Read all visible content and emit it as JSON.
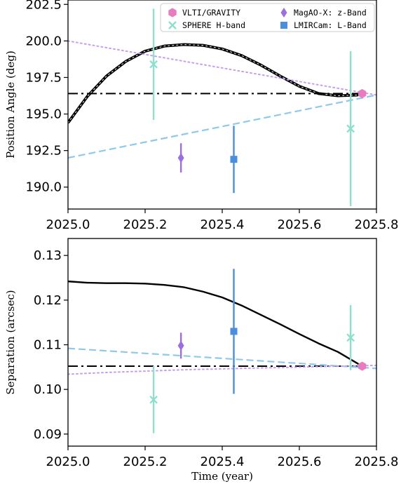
{
  "chart_data": [
    {
      "type": "line",
      "panel": "top",
      "title": "",
      "xlabel": "",
      "ylabel": "Position Angle (deg)",
      "xlim": [
        2025.0,
        2025.8
      ],
      "ylim": [
        188.5,
        202.8
      ],
      "x_ticks": [
        2025.0,
        2025.2,
        2025.4,
        2025.6,
        2025.8
      ],
      "x_tick_labels": [
        "2025.0",
        "2025.2",
        "2025.4",
        "2025.6",
        "2025.8"
      ],
      "y_ticks": [
        190.0,
        192.5,
        195.0,
        197.5,
        200.0,
        202.5
      ],
      "y_tick_labels": [
        "190.0",
        "192.5",
        "195.0",
        "197.5",
        "200.0",
        "202.5"
      ],
      "grid": false,
      "legend_position": "top",
      "lines": [
        {
          "style": "solid",
          "color": "#000000",
          "width": 4,
          "x": [
            2025.0,
            2025.05,
            2025.1,
            2025.15,
            2025.2,
            2025.25,
            2025.3,
            2025.35,
            2025.4,
            2025.45,
            2025.5,
            2025.55,
            2025.6,
            2025.65,
            2025.7,
            2025.75,
            2025.763
          ],
          "y": [
            194.4,
            196.2,
            197.6,
            198.6,
            199.3,
            199.65,
            199.75,
            199.7,
            199.45,
            199.0,
            198.35,
            197.6,
            196.9,
            196.4,
            196.25,
            196.3,
            196.4
          ]
        },
        {
          "style": "dotted",
          "color": "#ffffff",
          "width": 1,
          "x": [
            2025.0,
            2025.05,
            2025.1,
            2025.15,
            2025.2,
            2025.25,
            2025.3,
            2025.35,
            2025.4,
            2025.45,
            2025.5,
            2025.55,
            2025.6,
            2025.65,
            2025.7,
            2025.75,
            2025.763
          ],
          "y": [
            194.4,
            196.2,
            197.6,
            198.6,
            199.3,
            199.65,
            199.75,
            199.7,
            199.45,
            199.0,
            198.35,
            197.6,
            196.9,
            196.4,
            196.25,
            196.3,
            196.4
          ]
        },
        {
          "style": "dashdot",
          "color": "#000000",
          "width": 2,
          "x": [
            2025.0,
            2025.763
          ],
          "y": [
            196.4,
            196.4
          ]
        },
        {
          "style": "dashed",
          "color": "#8ec9ec",
          "width": 2.2,
          "x": [
            2025.0,
            2025.8
          ],
          "y": [
            192.0,
            196.3
          ]
        },
        {
          "style": "dotted",
          "color": "#c59ef0",
          "width": 2,
          "x": [
            2025.0,
            2025.8
          ],
          "y": [
            200.0,
            196.3
          ]
        }
      ],
      "series": [
        {
          "name": "VLTI/GRAVITY",
          "marker": "hexagon",
          "color": "#e97bbf",
          "points": [
            {
              "x": 2025.763,
              "y": 196.4,
              "yerr": 0.1
            }
          ]
        },
        {
          "name": "SPHERE H-band",
          "marker": "x",
          "color": "#8fdfce",
          "points": [
            {
              "x": 2025.222,
              "y": 198.4,
              "yerr": 3.8
            },
            {
              "x": 2025.733,
              "y": 194.0,
              "yerr": 5.3
            }
          ]
        },
        {
          "name": "MagAO-X: z-Band",
          "marker": "diamond",
          "color": "#9b6fe0",
          "points": [
            {
              "x": 2025.293,
              "y": 192.0,
              "yerr": 1.0
            }
          ]
        },
        {
          "name": "LMIRCam: L-Band",
          "marker": "square",
          "color": "#4a8fdc",
          "points": [
            {
              "x": 2025.43,
              "y": 191.9,
              "yerr": 2.3
            }
          ]
        }
      ]
    },
    {
      "type": "line",
      "panel": "bottom",
      "title": "",
      "xlabel": "Time (year)",
      "ylabel": "Separation (arcsec)",
      "xlim": [
        2025.0,
        2025.8
      ],
      "ylim": [
        0.0873,
        0.1338
      ],
      "x_ticks": [
        2025.0,
        2025.2,
        2025.4,
        2025.6,
        2025.8
      ],
      "x_tick_labels": [
        "2025.0",
        "2025.2",
        "2025.4",
        "2025.6",
        "2025.8"
      ],
      "y_ticks": [
        0.09,
        0.1,
        0.11,
        0.12,
        0.13
      ],
      "y_tick_labels": [
        "0.09",
        "0.10",
        "0.11",
        "0.12",
        "0.13"
      ],
      "grid": false,
      "lines": [
        {
          "style": "solid",
          "color": "#000000",
          "width": 2.4,
          "x": [
            2025.0,
            2025.05,
            2025.1,
            2025.15,
            2025.2,
            2025.25,
            2025.3,
            2025.35,
            2025.4,
            2025.45,
            2025.5,
            2025.55,
            2025.6,
            2025.65,
            2025.7,
            2025.763
          ],
          "y": [
            0.1242,
            0.1239,
            0.1238,
            0.1238,
            0.1237,
            0.1234,
            0.1229,
            0.1219,
            0.1206,
            0.1188,
            0.1167,
            0.1146,
            0.1124,
            0.1103,
            0.1084,
            0.1052
          ]
        },
        {
          "style": "dashdot",
          "color": "#000000",
          "width": 2,
          "x": [
            2025.0,
            2025.763
          ],
          "y": [
            0.1052,
            0.1052
          ]
        },
        {
          "style": "dashed",
          "color": "#8ec9ec",
          "width": 2.2,
          "x": [
            2025.0,
            2025.8
          ],
          "y": [
            0.1092,
            0.1047
          ]
        },
        {
          "style": "dotted",
          "color": "#c59ef0",
          "width": 2,
          "x": [
            2025.0,
            2025.1,
            2025.2,
            2025.3,
            2025.4,
            2025.5,
            2025.6,
            2025.7,
            2025.8
          ],
          "y": [
            0.1034,
            0.1038,
            0.1041,
            0.1044,
            0.1046,
            0.1048,
            0.105,
            0.1052,
            0.1054
          ]
        }
      ],
      "series": [
        {
          "name": "VLTI/GRAVITY",
          "marker": "hexagon",
          "color": "#e97bbf",
          "points": [
            {
              "x": 2025.763,
              "y": 0.1052,
              "yerr": 0.0002
            }
          ]
        },
        {
          "name": "SPHERE H-band",
          "marker": "x",
          "color": "#8fdfce",
          "points": [
            {
              "x": 2025.222,
              "y": 0.0977,
              "yerr": 0.0075
            },
            {
              "x": 2025.733,
              "y": 0.1116,
              "yerr": 0.0073
            }
          ]
        },
        {
          "name": "MagAO-X: z-Band",
          "marker": "diamond",
          "color": "#9b6fe0",
          "points": [
            {
              "x": 2025.293,
              "y": 0.1098,
              "yerr": 0.0029
            }
          ]
        },
        {
          "name": "LMIRCam: L-Band",
          "marker": "square",
          "color": "#4a8fdc",
          "points": [
            {
              "x": 2025.43,
              "y": 0.113,
              "yerr": 0.014
            }
          ]
        }
      ]
    }
  ]
}
